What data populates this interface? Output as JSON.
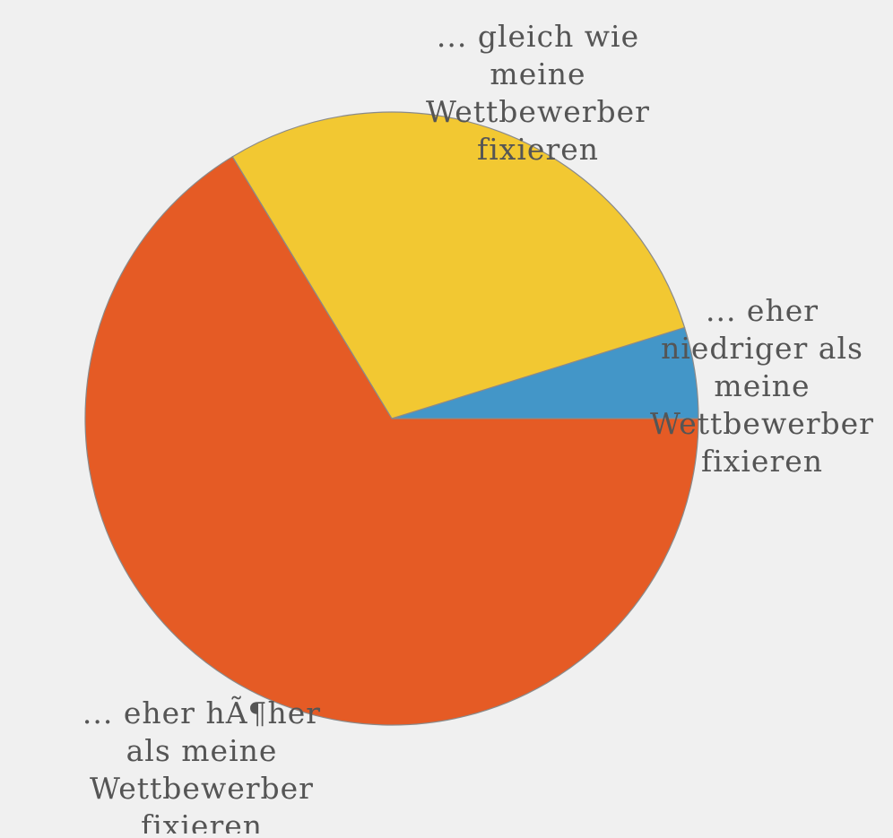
{
  "chart_data": {
    "type": "pie",
    "colors": {
      "background": "#f0f0f0",
      "slice_stroke": "#8a8a8a",
      "label_text": "#555555"
    },
    "slices": [
      {
        "label_lines": [
          "... eher",
          "niedriger als",
          "meine",
          "Wettbewerber",
          "fixieren"
        ],
        "value": 4.8,
        "color": "#4396c8"
      },
      {
        "label_lines": [
          "... gleich wie",
          "meine",
          "Wettbewerber",
          "fixieren"
        ],
        "value": 28.9,
        "color": "#f2c832"
      },
      {
        "label_lines": [
          "... eher hÃ¶her",
          "als meine",
          "Wettbewerber",
          "fixieren"
        ],
        "value": 66.3,
        "color": "#e55b25"
      }
    ]
  }
}
